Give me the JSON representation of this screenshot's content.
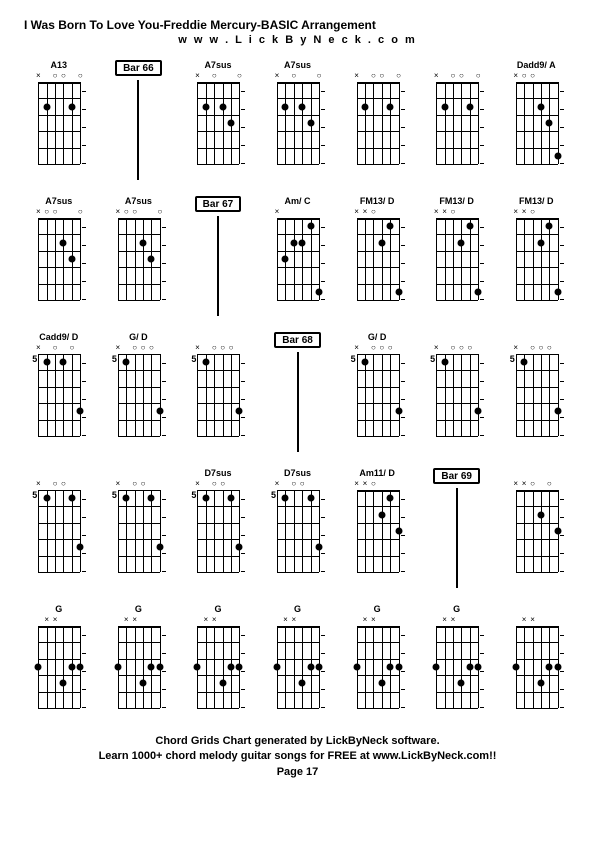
{
  "title": "I Was Born To Love You-Freddie Mercury-BASIC Arrangement",
  "subtitle": "w w w . L i c k B y N e c k . c o m",
  "footer_line1": "Chord Grids Chart generated by LickByNeck software.",
  "footer_line2": "Learn 1000+ chord melody guitar songs for FREE at www.LickByNeck.com!!",
  "footer_line3": "Page 17",
  "style": {
    "background": "#ffffff",
    "text_color": "#000000",
    "grid_color": "#000000",
    "dot_color": "#000000",
    "bar_border_color": "#000000",
    "fretboard_w": 42,
    "fretboard_h": 90,
    "num_strings": 6,
    "num_frets": 5,
    "title_fontsize": 12,
    "label_fontsize": 9,
    "footer_fontsize": 11
  },
  "rows": [
    [
      {
        "type": "chord",
        "label": "A13",
        "fretPos": "",
        "markers": [
          "x",
          "",
          "o",
          "o",
          "",
          "o"
        ],
        "dots": [
          [
            2,
            2
          ],
          [
            2,
            5
          ]
        ]
      },
      {
        "type": "bar",
        "label": "Bar 66"
      },
      {
        "type": "chord",
        "label": "A7sus",
        "fretPos": "",
        "markers": [
          "x",
          "",
          "o",
          "",
          "",
          "o"
        ],
        "dots": [
          [
            2,
            2
          ],
          [
            2,
            4
          ],
          [
            3,
            5
          ]
        ]
      },
      {
        "type": "chord",
        "label": "A7sus",
        "fretPos": "",
        "markers": [
          "x",
          "",
          "o",
          "",
          "",
          "o"
        ],
        "dots": [
          [
            2,
            2
          ],
          [
            2,
            4
          ],
          [
            3,
            5
          ]
        ]
      },
      {
        "type": "chord",
        "label": "",
        "fretPos": "",
        "markers": [
          "x",
          "",
          "o",
          "o",
          "",
          "o"
        ],
        "dots": [
          [
            2,
            2
          ],
          [
            2,
            5
          ]
        ]
      },
      {
        "type": "chord",
        "label": "",
        "fretPos": "",
        "markers": [
          "x",
          "",
          "o",
          "o",
          "",
          "o"
        ],
        "dots": [
          [
            2,
            2
          ],
          [
            2,
            5
          ]
        ]
      },
      {
        "type": "chord",
        "label": "Dadd9/ A",
        "fretPos": "",
        "markers": [
          "x",
          "o",
          "o",
          "",
          "",
          ""
        ],
        "dots": [
          [
            2,
            4
          ],
          [
            3,
            5
          ],
          [
            5,
            6
          ]
        ]
      }
    ],
    [
      {
        "type": "chord",
        "label": "A7sus",
        "fretPos": "",
        "markers": [
          "x",
          "o",
          "o",
          "",
          "",
          "o"
        ],
        "dots": [
          [
            2,
            4
          ],
          [
            3,
            5
          ]
        ]
      },
      {
        "type": "chord",
        "label": "A7sus",
        "fretPos": "",
        "markers": [
          "x",
          "o",
          "o",
          "",
          "",
          "o"
        ],
        "dots": [
          [
            2,
            4
          ],
          [
            3,
            5
          ]
        ]
      },
      {
        "type": "bar",
        "label": "Bar 67"
      },
      {
        "type": "chord",
        "label": "Am/ C",
        "fretPos": "",
        "markers": [
          "x",
          "",
          "",
          "",
          "",
          ""
        ],
        "dots": [
          [
            3,
            2
          ],
          [
            2,
            3
          ],
          [
            2,
            4
          ],
          [
            1,
            5
          ],
          [
            5,
            6
          ]
        ]
      },
      {
        "type": "chord",
        "label": "FM13/ D",
        "fretPos": "",
        "markers": [
          "x",
          "x",
          "o",
          "",
          "",
          ""
        ],
        "dots": [
          [
            2,
            4
          ],
          [
            1,
            5
          ],
          [
            5,
            6
          ]
        ]
      },
      {
        "type": "chord",
        "label": "FM13/ D",
        "fretPos": "",
        "markers": [
          "x",
          "x",
          "o",
          "",
          "",
          ""
        ],
        "dots": [
          [
            2,
            4
          ],
          [
            1,
            5
          ],
          [
            5,
            6
          ]
        ]
      },
      {
        "type": "chord",
        "label": "FM13/ D",
        "fretPos": "",
        "markers": [
          "x",
          "x",
          "o",
          "",
          "",
          ""
        ],
        "dots": [
          [
            2,
            4
          ],
          [
            1,
            5
          ],
          [
            5,
            6
          ]
        ]
      }
    ],
    [
      {
        "type": "chord",
        "label": "Cadd9/ D",
        "fretPos": "5",
        "markers": [
          "x",
          "",
          "o",
          "",
          "o",
          ""
        ],
        "dots": [
          [
            1,
            2
          ],
          [
            1,
            4
          ],
          [
            4,
            6
          ]
        ]
      },
      {
        "type": "chord",
        "label": "G/ D",
        "fretPos": "5",
        "markers": [
          "x",
          "",
          "o",
          "o",
          "o",
          ""
        ],
        "dots": [
          [
            1,
            2
          ],
          [
            4,
            6
          ]
        ]
      },
      {
        "type": "chord",
        "label": "",
        "fretPos": "5",
        "markers": [
          "x",
          "",
          "o",
          "o",
          "o",
          ""
        ],
        "dots": [
          [
            1,
            2
          ],
          [
            4,
            6
          ]
        ]
      },
      {
        "type": "bar",
        "label": "Bar 68"
      },
      {
        "type": "chord",
        "label": "G/ D",
        "fretPos": "5",
        "markers": [
          "x",
          "",
          "o",
          "o",
          "o",
          ""
        ],
        "dots": [
          [
            1,
            2
          ],
          [
            4,
            6
          ]
        ]
      },
      {
        "type": "chord",
        "label": "",
        "fretPos": "5",
        "markers": [
          "x",
          "",
          "o",
          "o",
          "o",
          ""
        ],
        "dots": [
          [
            1,
            2
          ],
          [
            4,
            6
          ]
        ]
      },
      {
        "type": "chord",
        "label": "",
        "fretPos": "5",
        "markers": [
          "x",
          "",
          "o",
          "o",
          "o",
          ""
        ],
        "dots": [
          [
            1,
            2
          ],
          [
            4,
            6
          ]
        ]
      }
    ],
    [
      {
        "type": "chord",
        "label": "",
        "fretPos": "5",
        "markers": [
          "x",
          "",
          "o",
          "o",
          "",
          ""
        ],
        "dots": [
          [
            1,
            2
          ],
          [
            1,
            5
          ],
          [
            4,
            6
          ]
        ]
      },
      {
        "type": "chord",
        "label": "",
        "fretPos": "5",
        "markers": [
          "x",
          "",
          "o",
          "o",
          "",
          ""
        ],
        "dots": [
          [
            1,
            2
          ],
          [
            1,
            5
          ],
          [
            4,
            6
          ]
        ]
      },
      {
        "type": "chord",
        "label": "D7sus",
        "fretPos": "5",
        "markers": [
          "x",
          "",
          "o",
          "o",
          "",
          ""
        ],
        "dots": [
          [
            1,
            2
          ],
          [
            1,
            5
          ],
          [
            4,
            6
          ]
        ]
      },
      {
        "type": "chord",
        "label": "D7sus",
        "fretPos": "5",
        "markers": [
          "x",
          "",
          "o",
          "o",
          "",
          ""
        ],
        "dots": [
          [
            1,
            2
          ],
          [
            1,
            5
          ],
          [
            4,
            6
          ]
        ]
      },
      {
        "type": "chord",
        "label": "Am11/ D",
        "fretPos": "",
        "markers": [
          "x",
          "x",
          "o",
          "",
          "",
          ""
        ],
        "dots": [
          [
            2,
            4
          ],
          [
            1,
            5
          ],
          [
            3,
            6
          ]
        ]
      },
      {
        "type": "bar",
        "label": "Bar 69"
      },
      {
        "type": "chord",
        "label": "",
        "fretPos": "",
        "markers": [
          "x",
          "x",
          "o",
          "",
          "o",
          ""
        ],
        "dots": [
          [
            2,
            4
          ],
          [
            3,
            6
          ]
        ]
      }
    ],
    [
      {
        "type": "chord",
        "label": "G",
        "fretPos": "",
        "markers": [
          "",
          "x",
          "x",
          "",
          "",
          ""
        ],
        "dots": [
          [
            3,
            1
          ],
          [
            4,
            4
          ],
          [
            3,
            5
          ],
          [
            3,
            6
          ]
        ]
      },
      {
        "type": "chord",
        "label": "G",
        "fretPos": "",
        "markers": [
          "",
          "x",
          "x",
          "",
          "",
          ""
        ],
        "dots": [
          [
            3,
            1
          ],
          [
            4,
            4
          ],
          [
            3,
            5
          ],
          [
            3,
            6
          ]
        ]
      },
      {
        "type": "chord",
        "label": "G",
        "fretPos": "",
        "markers": [
          "",
          "x",
          "x",
          "",
          "",
          ""
        ],
        "dots": [
          [
            3,
            1
          ],
          [
            4,
            4
          ],
          [
            3,
            5
          ],
          [
            3,
            6
          ]
        ]
      },
      {
        "type": "chord",
        "label": "G",
        "fretPos": "",
        "markers": [
          "",
          "x",
          "x",
          "",
          "",
          ""
        ],
        "dots": [
          [
            3,
            1
          ],
          [
            4,
            4
          ],
          [
            3,
            5
          ],
          [
            3,
            6
          ]
        ]
      },
      {
        "type": "chord",
        "label": "G",
        "fretPos": "",
        "markers": [
          "",
          "x",
          "x",
          "",
          "",
          ""
        ],
        "dots": [
          [
            3,
            1
          ],
          [
            4,
            4
          ],
          [
            3,
            5
          ],
          [
            3,
            6
          ]
        ]
      },
      {
        "type": "chord",
        "label": "G",
        "fretPos": "",
        "markers": [
          "",
          "x",
          "x",
          "",
          "",
          ""
        ],
        "dots": [
          [
            3,
            1
          ],
          [
            4,
            4
          ],
          [
            3,
            5
          ],
          [
            3,
            6
          ]
        ]
      },
      {
        "type": "chord",
        "label": "",
        "fretPos": "",
        "markers": [
          "",
          "x",
          "x",
          "",
          "",
          ""
        ],
        "dots": [
          [
            3,
            1
          ],
          [
            4,
            4
          ],
          [
            3,
            5
          ],
          [
            3,
            6
          ]
        ]
      }
    ]
  ]
}
